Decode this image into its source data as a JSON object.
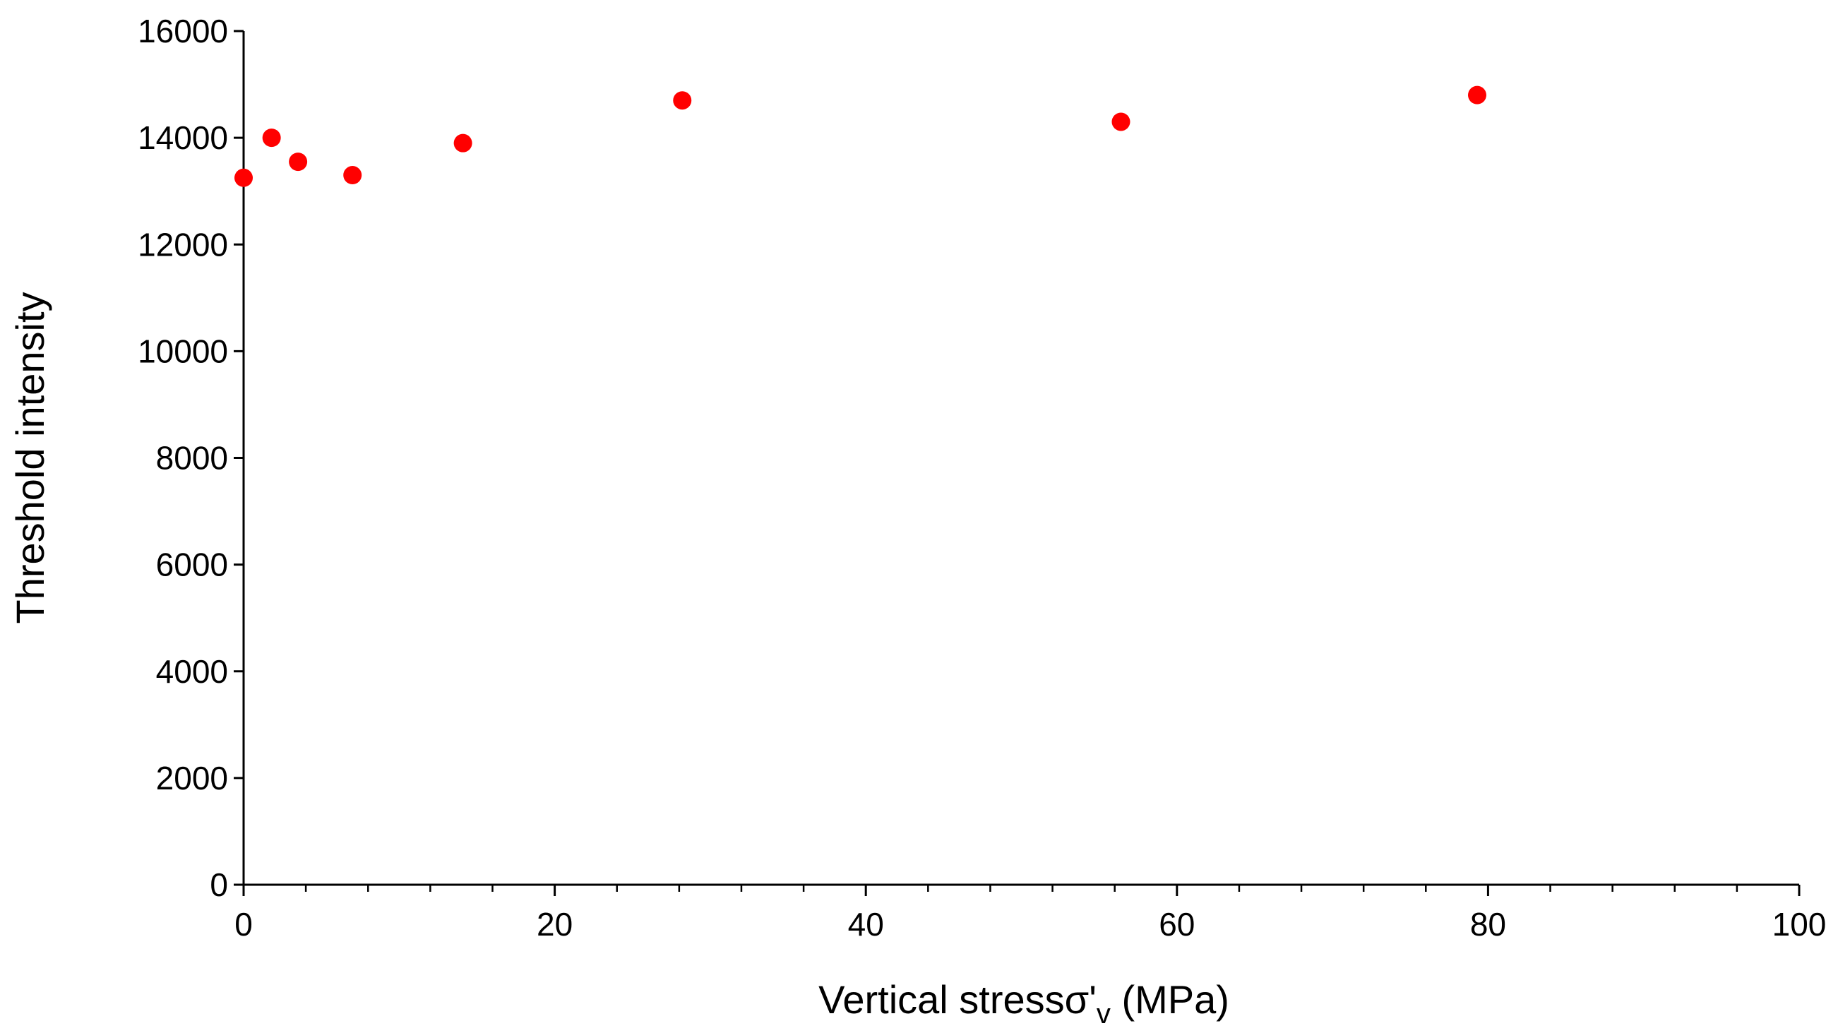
{
  "chart_data": {
    "type": "scatter",
    "title": "",
    "xlabel": {
      "main": "Vertical stress",
      "symbol": "σ'",
      "subscript": "v",
      "unit": " (MPa)"
    },
    "ylabel": "Threshold intensity",
    "xlim": [
      0,
      100
    ],
    "ylim": [
      0,
      16000
    ],
    "x_major_ticks": [
      "0",
      "20",
      "40",
      "60",
      "80",
      "100"
    ],
    "y_major_ticks": [
      "0",
      "2000",
      "4000",
      "6000",
      "8000",
      "10000",
      "12000",
      "14000",
      "16000"
    ],
    "x_major_values": [
      0,
      20,
      40,
      60,
      80,
      100
    ],
    "y_major_values": [
      0,
      2000,
      4000,
      6000,
      8000,
      10000,
      12000,
      14000,
      16000
    ],
    "x_minor_step": 4,
    "grid": false,
    "legend": "none",
    "marker_color": "#ff0000",
    "series": [
      {
        "points": [
          {
            "x": 0,
            "y": 13250
          },
          {
            "x": 1.8,
            "y": 14000
          },
          {
            "x": 3.5,
            "y": 13550
          },
          {
            "x": 7,
            "y": 13300
          },
          {
            "x": 14.1,
            "y": 13900
          },
          {
            "x": 28.2,
            "y": 14700
          },
          {
            "x": 56.4,
            "y": 14300
          },
          {
            "x": 79.3,
            "y": 14800
          }
        ]
      }
    ]
  }
}
